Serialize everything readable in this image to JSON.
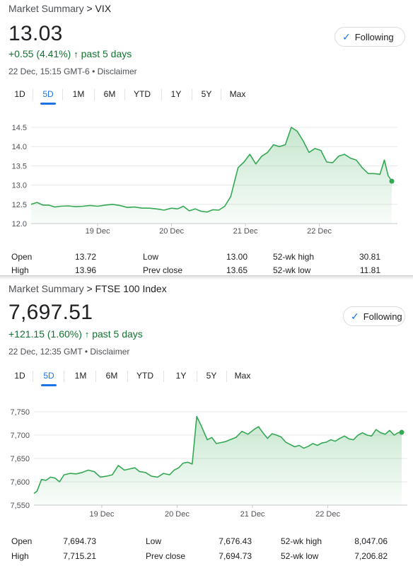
{
  "panels": [
    {
      "breadcrumb_prefix": "Market Summary",
      "breadcrumb_sep": ">",
      "breadcrumb_name": "VIX",
      "price": "13.03",
      "change": "+0.55 (4.41%)",
      "change_arrow": "↑",
      "change_period": "past 5 days",
      "timestamp": "22 Dec, 15:15 GMT-6",
      "disclaimer": "• Disclaimer",
      "follow_label": "Following",
      "tabs": [
        "1D",
        "5D",
        "1M",
        "6M",
        "YTD",
        "1Y",
        "5Y",
        "Max"
      ],
      "active_tab": "5D",
      "stats": {
        "open_label": "Open",
        "open": "13.72",
        "high_label": "High",
        "high": "13.96",
        "low_label": "Low",
        "low": "13.00",
        "prev_label": "Prev close",
        "prev": "13.65",
        "hi52_label": "52-wk high",
        "hi52": "30.81",
        "lo52_label": "52-wk low",
        "lo52": "11.81"
      }
    },
    {
      "breadcrumb_prefix": "Market Summary",
      "breadcrumb_sep": ">",
      "breadcrumb_name": "FTSE 100 Index",
      "price": "7,697.51",
      "change": "+121.15 (1.60%)",
      "change_arrow": "↑",
      "change_period": "past 5 days",
      "timestamp": "22 Dec, 12:35 GMT",
      "disclaimer": "• Disclaimer",
      "follow_label": "Following",
      "tabs": [
        "1D",
        "5D",
        "1M",
        "6M",
        "YTD",
        "1Y",
        "5Y",
        "Max"
      ],
      "active_tab": "5D",
      "stats": {
        "open_label": "Open",
        "open": "7,694.73",
        "high_label": "High",
        "high": "7,715.21",
        "low_label": "Low",
        "low": "7,676.43",
        "prev_label": "Prev close",
        "prev": "7,694.73",
        "hi52_label": "52-wk high",
        "hi52": "8,047.06",
        "lo52_label": "52-wk low",
        "lo52": "7,206.82"
      }
    }
  ],
  "colors": {
    "line": "#34a853",
    "fill": "#e6f4ea",
    "up": "#137333",
    "accent": "#1a73e8",
    "grid": "#e8e8e8"
  },
  "chart_data": [
    {
      "type": "area",
      "title": "",
      "ytick_labels": [
        "12.0",
        "12.5",
        "13.0",
        "13.5",
        "14.0",
        "14.5"
      ],
      "ylim": [
        12.0,
        14.5
      ],
      "x_labels": [
        "19 Dec",
        "20 Dec",
        "21 Dec",
        "22 Dec"
      ],
      "x_label_positions": [
        1,
        2,
        3,
        4
      ],
      "xlim": [
        0.1,
        4.98
      ],
      "grid": true,
      "series": [
        {
          "x": [
            0.1,
            0.18,
            0.26,
            0.34,
            0.42,
            0.5,
            0.6,
            0.7,
            0.8,
            0.9,
            1.0,
            1.1,
            1.2,
            1.3,
            1.4,
            1.5,
            1.6,
            1.7,
            1.8,
            1.9,
            2.0,
            2.08,
            2.16,
            2.24,
            2.32,
            2.4,
            2.48,
            2.56,
            2.64,
            2.72,
            2.8,
            2.9,
            2.98,
            3.06,
            3.14,
            3.22,
            3.3,
            3.38,
            3.46,
            3.54,
            3.62,
            3.7,
            3.78,
            3.86,
            3.94,
            4.02,
            4.1,
            4.18,
            4.26,
            4.34,
            4.42,
            4.5,
            4.58,
            4.66,
            4.74,
            4.82,
            4.88,
            4.93,
            4.98
          ],
          "values": [
            12.5,
            12.55,
            12.48,
            12.48,
            12.43,
            12.45,
            12.46,
            12.44,
            12.45,
            12.47,
            12.45,
            12.48,
            12.5,
            12.47,
            12.42,
            12.43,
            12.4,
            12.4,
            12.38,
            12.35,
            12.4,
            12.38,
            12.45,
            12.33,
            12.38,
            12.32,
            12.3,
            12.36,
            12.35,
            12.45,
            12.7,
            13.45,
            13.6,
            13.8,
            13.55,
            13.75,
            13.85,
            14.05,
            14.0,
            14.05,
            14.5,
            14.4,
            14.15,
            13.85,
            13.95,
            13.9,
            13.6,
            13.58,
            13.75,
            13.8,
            13.7,
            13.65,
            13.45,
            13.3,
            13.3,
            13.28,
            13.65,
            13.25,
            13.1
          ]
        }
      ]
    },
    {
      "type": "area",
      "title": "",
      "ytick_labels": [
        "7,550",
        "7,600",
        "7,650",
        "7,700",
        "7,750"
      ],
      "ylim": [
        7550,
        7750
      ],
      "x_labels": [
        "19 Dec",
        "20 Dec",
        "21 Dec",
        "22 Dec"
      ],
      "x_label_positions": [
        1,
        2,
        3,
        4
      ],
      "xlim": [
        0.1,
        4.98
      ],
      "grid": true,
      "series": [
        {
          "x": [
            0.1,
            0.14,
            0.2,
            0.26,
            0.32,
            0.38,
            0.44,
            0.5,
            0.58,
            0.66,
            0.74,
            0.82,
            0.9,
            0.98,
            1.06,
            1.14,
            1.22,
            1.3,
            1.38,
            1.44,
            1.5,
            1.58,
            1.66,
            1.74,
            1.82,
            1.9,
            1.96,
            2.02,
            2.08,
            2.14,
            2.2,
            2.26,
            2.32,
            2.36,
            2.4,
            2.46,
            2.52,
            2.58,
            2.64,
            2.7,
            2.78,
            2.86,
            2.94,
            3.02,
            3.08,
            3.14,
            3.2,
            3.26,
            3.32,
            3.38,
            3.44,
            3.5,
            3.56,
            3.62,
            3.68,
            3.74,
            3.8,
            3.86,
            3.92,
            3.98,
            4.04,
            4.1,
            4.16,
            4.22,
            4.28,
            4.34,
            4.4,
            4.46,
            4.52,
            4.58,
            4.64,
            4.7,
            4.76,
            4.82,
            4.88,
            4.93,
            4.98
          ],
          "values": [
            7575,
            7580,
            7605,
            7603,
            7610,
            7608,
            7600,
            7615,
            7618,
            7617,
            7620,
            7625,
            7622,
            7610,
            7612,
            7615,
            7635,
            7625,
            7628,
            7630,
            7622,
            7620,
            7612,
            7610,
            7618,
            7615,
            7625,
            7630,
            7640,
            7642,
            7638,
            7740,
            7720,
            7705,
            7690,
            7695,
            7682,
            7684,
            7686,
            7690,
            7695,
            7708,
            7702,
            7712,
            7718,
            7705,
            7693,
            7703,
            7700,
            7696,
            7685,
            7680,
            7675,
            7678,
            7672,
            7676,
            7682,
            7678,
            7683,
            7685,
            7690,
            7687,
            7693,
            7698,
            7692,
            7690,
            7700,
            7705,
            7700,
            7698,
            7712,
            7705,
            7702,
            7710,
            7700,
            7705,
            7706
          ]
        }
      ]
    }
  ]
}
